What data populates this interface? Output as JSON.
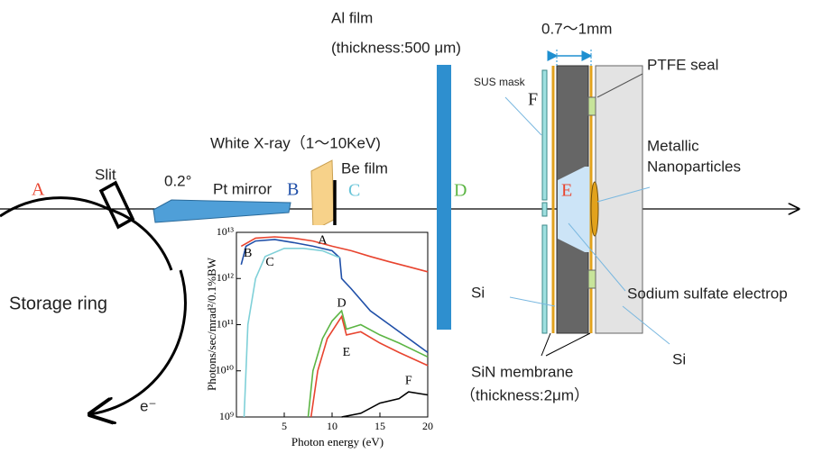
{
  "labels": {
    "a": "A",
    "slit": "Slit",
    "angle": "0.2°",
    "pt_mirror": "Pt mirror",
    "b": "B",
    "white_xray": "White X-ray（1〜10KeV)",
    "be_film": "Be film",
    "c": "C",
    "al_film": "Al film",
    "al_thickness": "(thickness:500 μm)",
    "d": "D",
    "gap": "0.7〜1mm",
    "sus_mask": "SUS mask",
    "f": "F",
    "e": "E",
    "ptfe_seal": "PTFE seal",
    "metallic": "Metallic",
    "nanoparticles": "Nanoparticles",
    "si_left": "Si",
    "sodium_sulfate": "Sodium sulfate electrop",
    "si_right": "Si",
    "sin_membrane": "SiN membrane",
    "sin_thickness": "（thickness:2μm）",
    "storage_ring": "Storage ring",
    "electron": "e⁻"
  },
  "chart_data": {
    "type": "line",
    "xlabel": "Photon energy (eV)",
    "ylabel": "Photons/sec/mrad²/0.1%BW",
    "xlim": [
      0,
      20
    ],
    "xticks": [
      5,
      10,
      15,
      20
    ],
    "ylim": [
      1000000000,
      10000000000000
    ],
    "log_y": true,
    "yticks": [
      {
        "value": 1000000000,
        "label": "10⁹"
      },
      {
        "value": 10000000000,
        "label": "10¹⁰"
      },
      {
        "value": 100000000000,
        "label": "10¹¹"
      },
      {
        "value": 1000000000000,
        "label": "10¹²"
      },
      {
        "value": 10000000000000,
        "label": "10¹³"
      }
    ],
    "series": [
      {
        "name": "A",
        "color": "#e8442f",
        "x": [
          0.5,
          2,
          4,
          6,
          8,
          10,
          12,
          14,
          16,
          18,
          20
        ],
        "values": [
          5000000000000,
          7500000000000,
          8000000000000,
          7500000000000,
          6500000000000,
          5000000000000,
          4000000000000,
          3000000000000,
          2300000000000,
          1800000000000,
          1400000000000
        ]
      },
      {
        "name": "B",
        "color": "#1f4fa8",
        "x": [
          0.5,
          1,
          2,
          4,
          6,
          8,
          10,
          10.8,
          11,
          12,
          14,
          16,
          18,
          20
        ],
        "values": [
          2000000000000,
          5000000000000,
          6500000000000,
          7000000000000,
          6000000000000,
          5000000000000,
          4000000000000,
          2800000000000,
          1000000000000,
          600000000000,
          200000000000,
          100000000000,
          50000000000,
          25000000000
        ]
      },
      {
        "name": "C",
        "color": "#7fd0d8",
        "x": [
          0.8,
          1.2,
          2,
          3,
          5,
          7,
          9,
          10.8
        ],
        "values": [
          1000000000,
          100000000000,
          1000000000000,
          3000000000000,
          4500000000000,
          4500000000000,
          4000000000000,
          2800000000000
        ]
      },
      {
        "name": "D",
        "color": "#5cb544",
        "x": [
          7.5,
          8,
          9,
          10,
          11,
          11.5,
          13,
          15,
          17,
          20
        ],
        "values": [
          1000000000,
          10000000000,
          50000000000,
          120000000000,
          200000000000,
          80000000000,
          100000000000,
          60000000000,
          40000000000,
          20000000000
        ]
      },
      {
        "name": "E",
        "color": "#e8442f",
        "x": [
          7.8,
          8.5,
          9.5,
          11,
          11.5,
          13,
          15,
          17,
          20
        ],
        "values": [
          1000000000,
          10000000000,
          50000000000,
          150000000000,
          60000000000,
          70000000000,
          40000000000,
          25000000000,
          13000000000
        ]
      },
      {
        "name": "F",
        "color": "#000000",
        "x": [
          11,
          13,
          15,
          17,
          18,
          20
        ],
        "values": [
          1000000000,
          1200000000,
          2000000000,
          2500000000,
          3500000000,
          3000000000
        ]
      }
    ]
  }
}
